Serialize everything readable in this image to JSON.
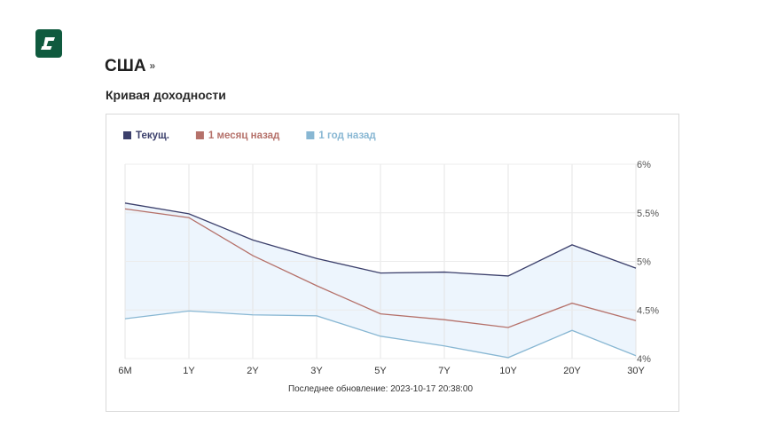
{
  "header": {
    "country": "США",
    "country_suffix": "»",
    "section_title": "Кривая доходности",
    "logo_icon": "brand-logo-icon"
  },
  "chart_data": {
    "type": "line",
    "categories": [
      "6M",
      "1Y",
      "2Y",
      "3Y",
      "5Y",
      "7Y",
      "10Y",
      "20Y",
      "30Y"
    ],
    "series": [
      {
        "name": "Текущ.",
        "color": "#3b3f6b",
        "values": [
          5.6,
          5.49,
          5.22,
          5.03,
          4.88,
          4.89,
          4.85,
          5.17,
          4.93
        ]
      },
      {
        "name": "1 месяц назад",
        "color": "#b5716a",
        "values": [
          5.54,
          5.45,
          5.06,
          4.75,
          4.46,
          4.4,
          4.32,
          4.57,
          4.39
        ]
      },
      {
        "name": "1 год назад",
        "color": "#88b7d3",
        "values": [
          4.41,
          4.49,
          4.45,
          4.44,
          4.23,
          4.13,
          4.01,
          4.29,
          4.03
        ]
      }
    ],
    "fill_color": "#edf5fd",
    "ylim": [
      4,
      6
    ],
    "yticks": [
      "6%",
      "5.5%",
      "5%",
      "4.5%",
      "4%"
    ],
    "ytick_values": [
      6,
      5.5,
      5,
      4.5,
      4
    ],
    "grid": true,
    "legend_position": "top-left",
    "footer": "Последнее обновление: 2023-10-17 20:38:00"
  }
}
